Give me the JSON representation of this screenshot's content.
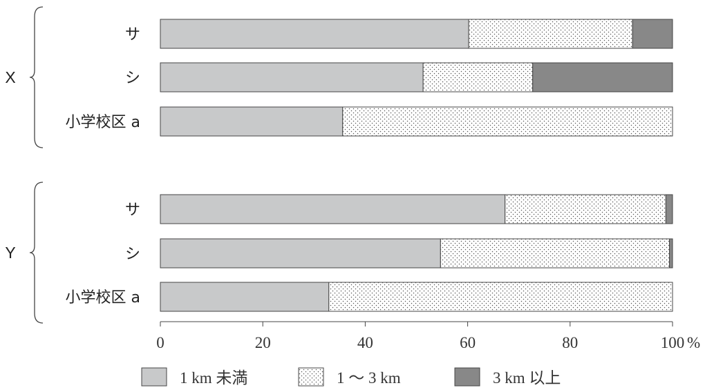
{
  "chart_data": {
    "type": "bar",
    "orientation": "horizontal",
    "stacked": true,
    "groups": [
      {
        "name": "X",
        "rows": [
          {
            "label": "サ",
            "values": [
              60.2,
              32.0,
              7.8
            ]
          },
          {
            "label": "シ",
            "values": [
              51.3,
              21.4,
              27.3
            ]
          },
          {
            "label": "小学校区 a",
            "values": [
              35.6,
              64.4,
              0
            ]
          }
        ]
      },
      {
        "name": "Y",
        "rows": [
          {
            "label": "サ",
            "values": [
              67.3,
              31.4,
              1.3
            ]
          },
          {
            "label": "シ",
            "values": [
              54.7,
              44.7,
              0.6
            ]
          },
          {
            "label": "小学校区 a",
            "values": [
              32.9,
              67.1,
              0
            ]
          }
        ]
      }
    ],
    "series": [
      {
        "name": "1 km 未満",
        "style": "solid",
        "color": "#c8c9ca"
      },
      {
        "name": "1 ～ 3 km",
        "style": "dotted",
        "color": "#ffffff"
      },
      {
        "name": "3 km 以上",
        "style": "solid",
        "color": "#888888"
      }
    ],
    "xlim": [
      0,
      100
    ],
    "xticks": [
      "0",
      "20",
      "40",
      "60",
      "80",
      "100"
    ],
    "xunit": "%",
    "legend_position": "bottom",
    "grid": false
  }
}
